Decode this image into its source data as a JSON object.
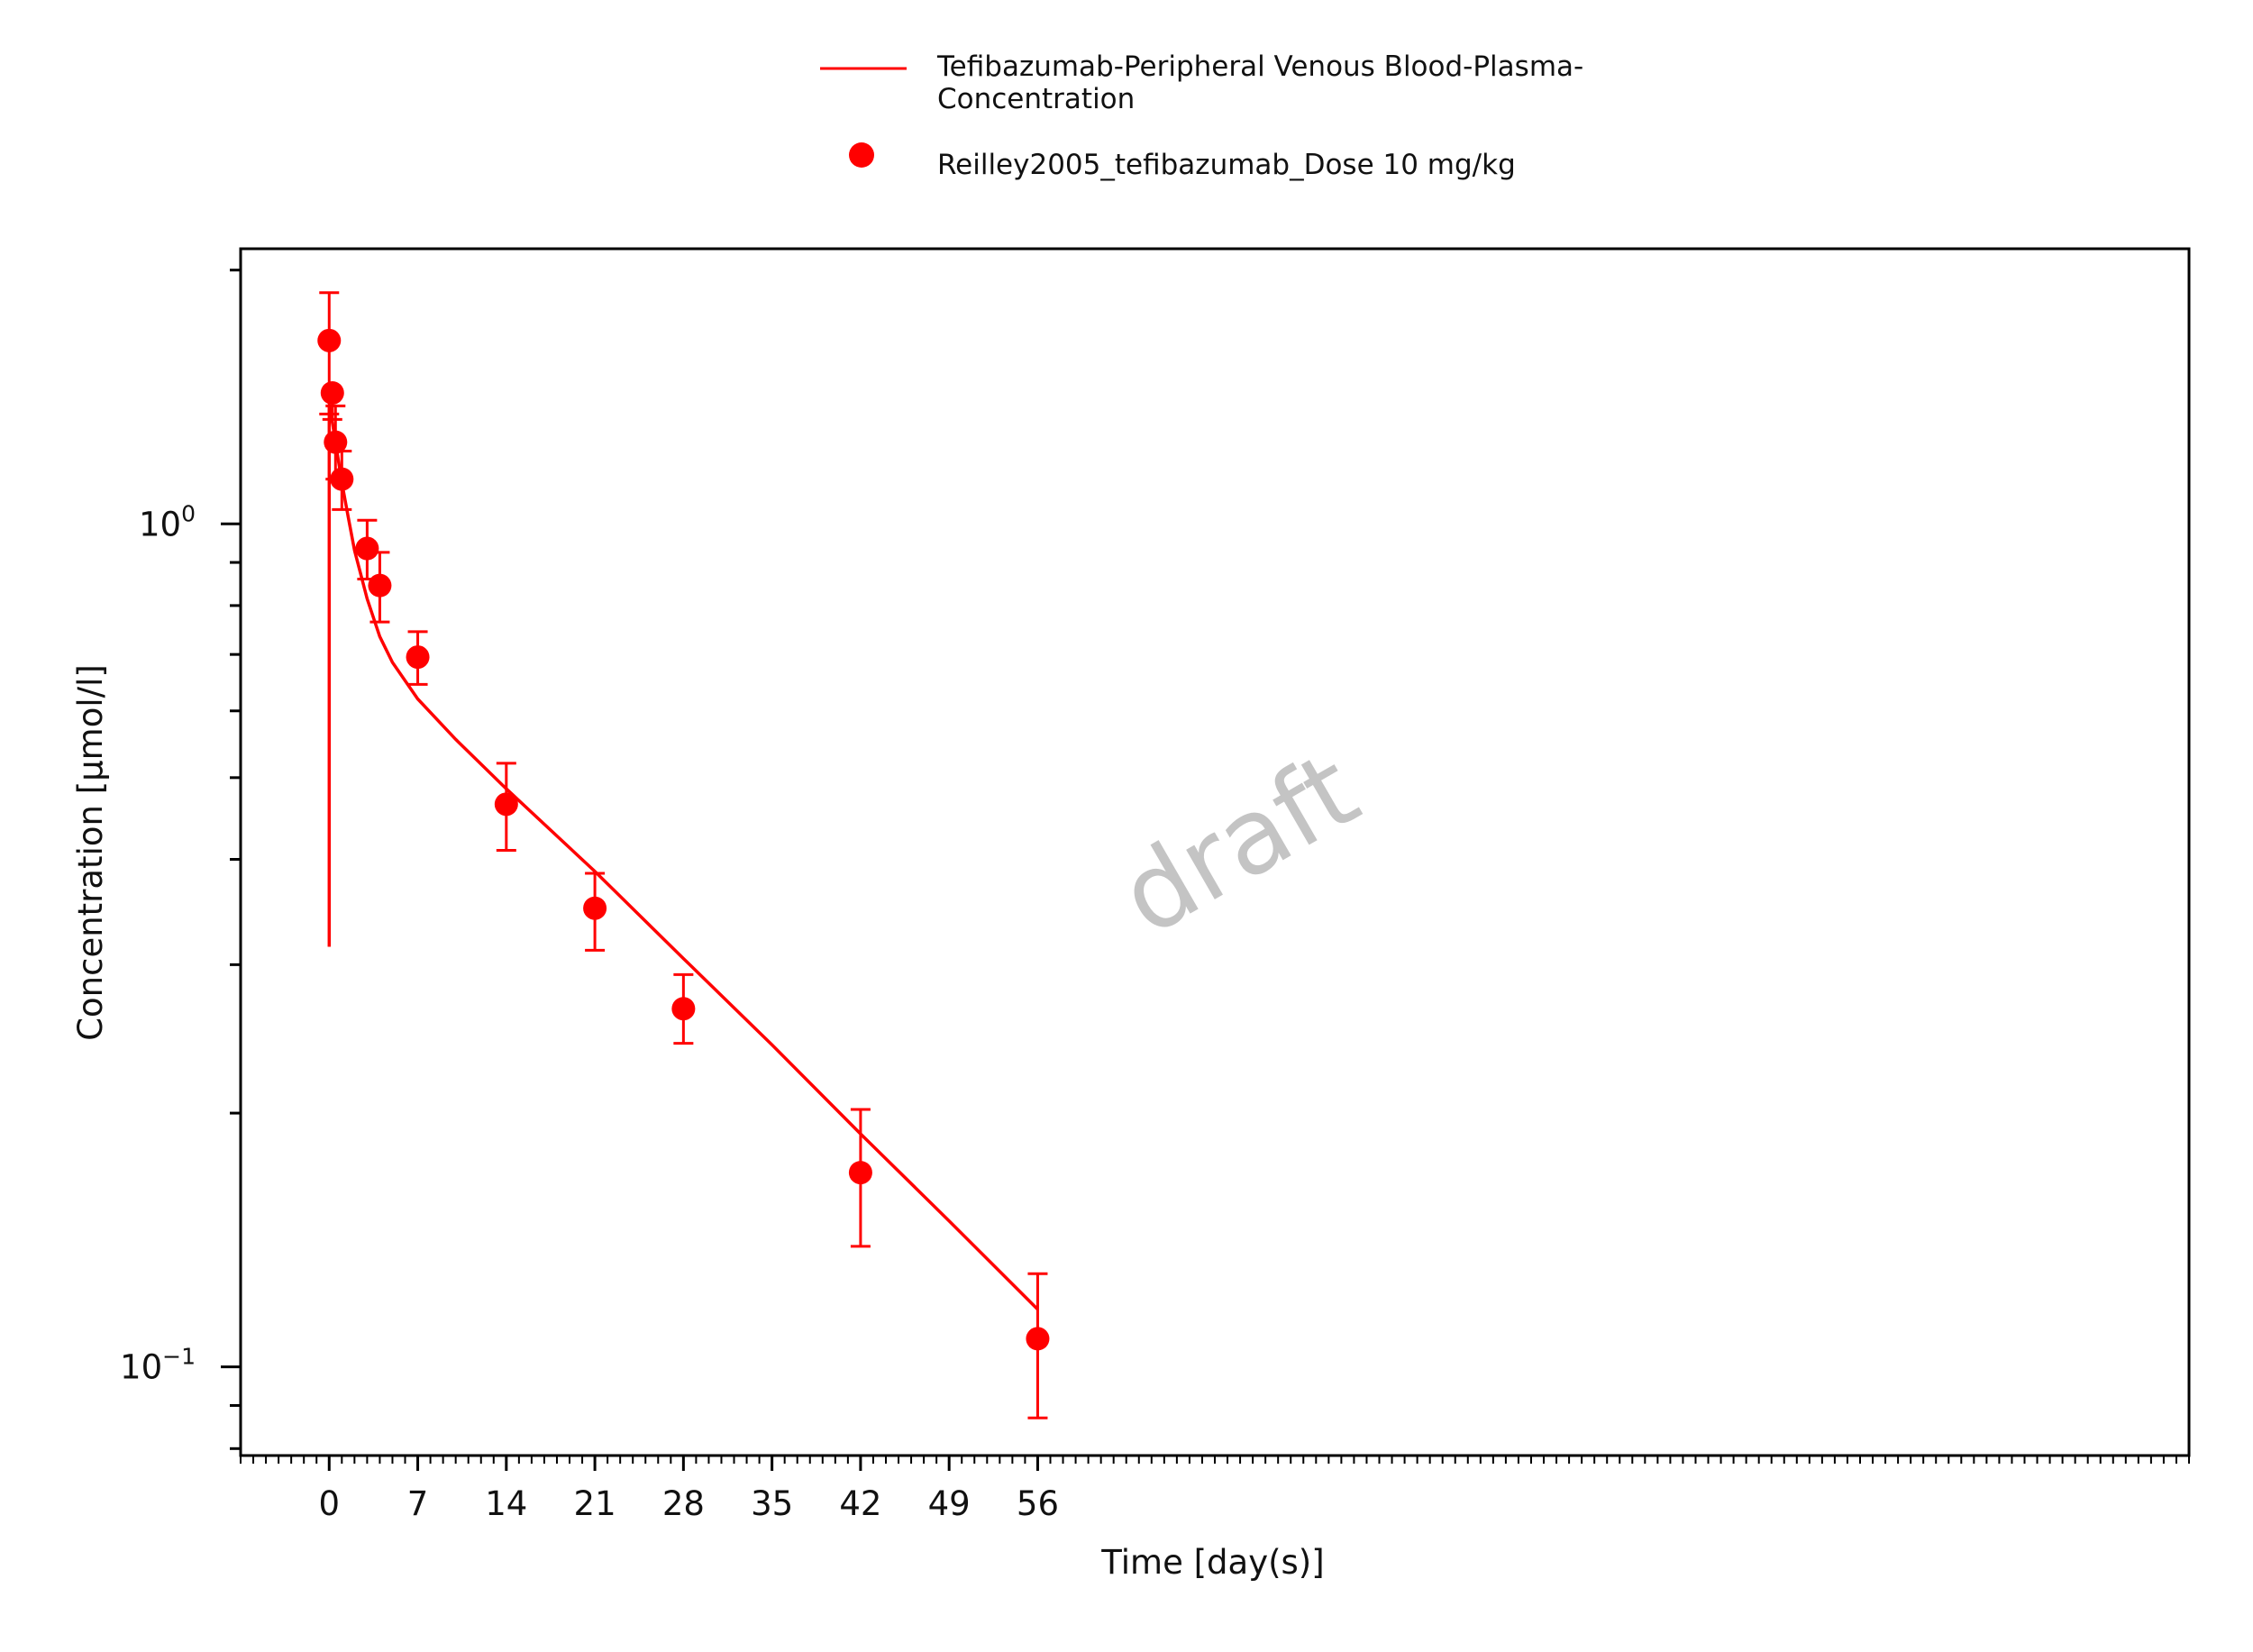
{
  "chart_data": {
    "type": "scatter",
    "x_axis": {
      "label": "Time [day(s)]",
      "range": [
        -7.0,
        147.0
      ],
      "ticks": [
        0,
        7,
        14,
        21,
        28,
        35,
        42,
        49,
        56
      ],
      "minor_step": 1
    },
    "y_axis": {
      "label": "Concentration [µmol/l]",
      "scale": "log",
      "range": [
        0.0785,
        2.12
      ],
      "ticks": [
        {
          "value": 1.0,
          "base": "10",
          "exp": "0"
        },
        {
          "value": 0.1,
          "base": "10",
          "exp": "−1"
        }
      ],
      "minor_ticks": [
        0.08,
        0.09,
        0.2,
        0.3,
        0.4,
        0.5,
        0.6,
        0.7,
        0.8,
        0.9,
        2.0
      ]
    },
    "legend": {
      "placement": "top-center",
      "entries": [
        {
          "label_lines": [
            "Tefibazumab-Peripheral Venous Blood-Plasma-",
            "Concentration"
          ],
          "marker": "line"
        },
        {
          "label_lines": [
            "Reilley2005_tefibazumab_Dose 10 mg/kg"
          ],
          "marker": "dot"
        }
      ]
    },
    "series": [
      {
        "kind": "line",
        "color": "#ff0000",
        "points": [
          {
            "x": 0.0,
            "y": 0.315
          },
          {
            "x": 0.0,
            "y": 1.38
          },
          {
            "x": 0.25,
            "y": 1.32
          },
          {
            "x": 0.5,
            "y": 1.25
          },
          {
            "x": 1.0,
            "y": 1.12
          },
          {
            "x": 1.5,
            "y": 1.02
          },
          {
            "x": 2.0,
            "y": 0.93
          },
          {
            "x": 3.0,
            "y": 0.815
          },
          {
            "x": 4.0,
            "y": 0.735
          },
          {
            "x": 5.0,
            "y": 0.685
          },
          {
            "x": 7.0,
            "y": 0.62
          },
          {
            "x": 10.0,
            "y": 0.555
          },
          {
            "x": 14.0,
            "y": 0.485
          },
          {
            "x": 21.0,
            "y": 0.387
          },
          {
            "x": 28.0,
            "y": 0.305
          },
          {
            "x": 35.0,
            "y": 0.241
          },
          {
            "x": 42.0,
            "y": 0.189
          },
          {
            "x": 49.0,
            "y": 0.149
          },
          {
            "x": 56.0,
            "y": 0.117
          }
        ]
      },
      {
        "kind": "scatter",
        "color": "#ff0000",
        "points": [
          {
            "x": 0.0,
            "y": 1.65,
            "lo": 1.35,
            "hi": 1.88
          },
          {
            "x": 0.25,
            "y": 1.43,
            "lo": 1.33,
            "hi": 1.43
          },
          {
            "x": 0.5,
            "y": 1.25,
            "lo": 1.13,
            "hi": 1.38
          },
          {
            "x": 1.0,
            "y": 1.13,
            "lo": 1.04,
            "hi": 1.22
          },
          {
            "x": 3.0,
            "y": 0.935,
            "lo": 0.86,
            "hi": 1.01
          },
          {
            "x": 4.0,
            "y": 0.845,
            "lo": 0.765,
            "hi": 0.925
          },
          {
            "x": 7.0,
            "y": 0.695,
            "lo": 0.645,
            "hi": 0.745
          },
          {
            "x": 14.0,
            "y": 0.465,
            "lo": 0.41,
            "hi": 0.52
          },
          {
            "x": 21.0,
            "y": 0.35,
            "lo": 0.312,
            "hi": 0.385
          },
          {
            "x": 28.0,
            "y": 0.266,
            "lo": 0.242,
            "hi": 0.292
          },
          {
            "x": 42.0,
            "y": 0.17,
            "lo": 0.139,
            "hi": 0.202
          },
          {
            "x": 56.0,
            "y": 0.108,
            "lo": 0.087,
            "hi": 0.129
          }
        ]
      }
    ],
    "watermark": "draft",
    "grid": false
  }
}
